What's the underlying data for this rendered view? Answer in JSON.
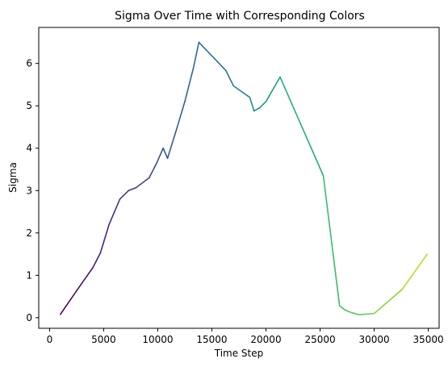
{
  "chart_data": {
    "type": "line",
    "title": "Sigma Over Time with Corresponding Colors",
    "xlabel": "Time Step",
    "ylabel": "Sigma",
    "xlim": [
      -1000,
      36000
    ],
    "ylim": [
      -0.25,
      6.85
    ],
    "x_ticks": [
      0,
      5000,
      10000,
      15000,
      20000,
      25000,
      30000,
      35000
    ],
    "y_ticks": [
      0,
      1,
      2,
      3,
      4,
      5,
      6
    ],
    "grid": false,
    "colormap": "viridis",
    "series": [
      {
        "points": [
          [
            1000,
            0.08
          ],
          [
            2000,
            0.45
          ],
          [
            3000,
            0.82
          ],
          [
            4000,
            1.18
          ],
          [
            4700,
            1.53
          ],
          [
            5500,
            2.2
          ],
          [
            6500,
            2.8
          ],
          [
            7300,
            3.0
          ],
          [
            8000,
            3.07
          ],
          [
            9200,
            3.3
          ],
          [
            9900,
            3.65
          ],
          [
            10500,
            4.0
          ],
          [
            10900,
            3.76
          ],
          [
            11800,
            4.5
          ],
          [
            12500,
            5.1
          ],
          [
            13300,
            5.9
          ],
          [
            13800,
            6.5
          ],
          [
            16300,
            5.83
          ],
          [
            17000,
            5.47
          ],
          [
            18500,
            5.2
          ],
          [
            18900,
            4.88
          ],
          [
            19400,
            4.95
          ],
          [
            20000,
            5.1
          ],
          [
            21300,
            5.68
          ],
          [
            25300,
            3.35
          ],
          [
            26800,
            0.28
          ],
          [
            27300,
            0.18
          ],
          [
            27900,
            0.12
          ],
          [
            28600,
            0.07
          ],
          [
            30000,
            0.1
          ],
          [
            32600,
            0.67
          ],
          [
            34900,
            1.5
          ]
        ]
      }
    ]
  }
}
